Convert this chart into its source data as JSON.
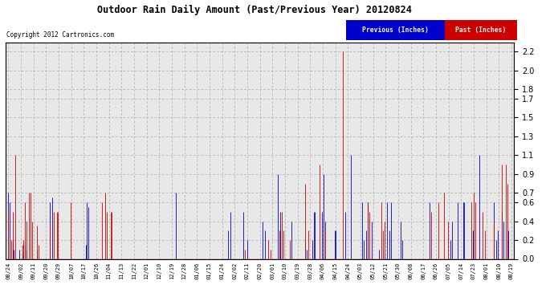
{
  "title": "Outdoor Rain Daily Amount (Past/Previous Year) 20120824",
  "copyright": "Copyright 2012 Cartronics.com",
  "legend": [
    "Previous (Inches)",
    "Past (Inches)"
  ],
  "legend_colors": [
    "#0000cc",
    "#cc0000"
  ],
  "bg_color": "#ffffff",
  "plot_bg_color": "#e8e8e8",
  "grid_color": "#aaaaaa",
  "ylim": [
    0.0,
    2.3
  ],
  "yticks": [
    0.0,
    0.2,
    0.4,
    0.6,
    0.7,
    0.9,
    1.1,
    1.3,
    1.5,
    1.7,
    1.8,
    2.0,
    2.2
  ],
  "x_labels": [
    "08/24",
    "09/02",
    "09/11",
    "09/20",
    "09/29",
    "10/07",
    "10/17",
    "10/26",
    "11/04",
    "11/13",
    "11/22",
    "12/01",
    "12/10",
    "12/19",
    "12/28",
    "01/06",
    "01/15",
    "01/24",
    "02/02",
    "02/11",
    "02/20",
    "03/01",
    "03/10",
    "03/19",
    "03/28",
    "04/06",
    "04/15",
    "04/24",
    "05/03",
    "05/12",
    "05/21",
    "05/30",
    "06/08",
    "06/17",
    "06/26",
    "07/05",
    "07/14",
    "07/23",
    "08/01",
    "08/10",
    "08/19"
  ],
  "previous_rain": [
    0.7,
    0.6,
    0.0,
    0.2,
    0.1,
    0.0,
    0.0,
    0.0,
    0.1,
    0.0,
    0.05,
    0.0,
    0.15,
    0.1,
    0.0,
    0.0,
    0.0,
    0.0,
    0.0,
    0.0,
    0.0,
    0.1,
    0.0,
    0.0,
    0.0,
    0.0,
    0.0,
    0.0,
    0.0,
    0.0,
    0.6,
    0.0,
    0.65,
    0.0,
    0.0,
    0.0,
    0.0,
    0.0,
    0.0,
    0.0,
    0.0,
    0.0,
    0.0,
    0.0,
    0.0,
    0.0,
    0.0,
    0.0,
    0.0,
    0.0,
    0.0,
    0.0,
    0.0,
    0.0,
    0.0,
    0.0,
    0.15,
    0.6,
    0.55,
    0.0,
    0.0,
    0.0,
    0.0,
    0.0,
    0.0,
    0.0,
    0.0,
    0.0,
    0.0,
    0.0,
    0.0,
    0.0,
    0.0,
    0.0,
    0.0,
    0.0,
    0.0,
    0.0,
    0.0,
    0.0,
    0.0,
    0.0,
    0.0,
    0.0,
    0.0,
    0.0,
    0.0,
    0.0,
    0.0,
    0.0,
    0.0,
    0.0,
    0.0,
    0.0,
    0.0,
    0.0,
    0.0,
    0.0,
    0.0,
    0.0,
    0.0,
    0.0,
    0.0,
    0.0,
    0.0,
    0.0,
    0.0,
    0.0,
    0.0,
    0.0,
    0.0,
    0.0,
    0.0,
    0.0,
    0.0,
    0.0,
    0.0,
    0.0,
    0.0,
    0.0,
    0.0,
    0.7,
    0.0,
    0.0,
    0.0,
    0.0,
    0.0,
    0.0,
    0.0,
    0.0,
    0.0,
    0.0,
    0.0,
    0.0,
    0.0,
    0.0,
    0.0,
    0.0,
    0.0,
    0.0,
    0.0,
    0.0,
    0.0,
    0.0,
    0.0,
    0.0,
    0.0,
    0.0,
    0.0,
    0.0,
    0.0,
    0.0,
    0.0,
    0.0,
    0.0,
    0.0,
    0.0,
    0.0,
    0.0,
    0.3,
    0.0,
    0.5,
    0.0,
    0.0,
    0.0,
    0.0,
    0.0,
    0.0,
    0.0,
    0.0,
    0.5,
    0.0,
    0.0,
    0.2,
    0.0,
    0.0,
    0.0,
    0.0,
    0.0,
    0.0,
    0.0,
    0.0,
    0.0,
    0.0,
    0.4,
    0.0,
    0.3,
    0.0,
    0.0,
    0.0,
    0.0,
    0.0,
    0.0,
    0.0,
    0.0,
    0.9,
    0.0,
    0.5,
    0.0,
    0.0,
    0.0,
    0.0,
    0.0,
    0.0,
    0.0,
    0.4,
    0.0,
    0.0,
    0.0,
    0.0,
    0.0,
    0.0,
    0.0,
    0.0,
    0.0,
    0.2,
    0.1,
    0.0,
    0.0,
    0.0,
    0.2,
    0.5,
    0.5,
    0.0,
    0.0,
    0.0,
    0.0,
    0.5,
    0.9,
    0.4,
    0.0,
    0.0,
    0.0,
    0.0,
    0.0,
    0.0,
    0.3,
    0.3,
    0.0,
    0.0,
    0.0,
    0.0,
    0.0,
    0.0,
    0.5,
    0.0,
    0.0,
    0.0,
    1.1,
    0.0,
    0.0,
    0.0,
    0.0,
    0.0,
    0.0,
    0.0,
    0.6,
    0.2,
    0.0,
    0.3,
    0.6,
    0.0,
    0.0,
    0.4,
    0.0,
    0.0,
    0.0,
    0.0,
    0.1,
    0.0,
    0.0,
    0.0,
    0.0,
    0.0,
    0.6,
    0.0,
    0.3,
    0.6,
    0.0,
    0.0,
    0.0,
    0.0,
    0.0,
    0.0,
    0.4,
    0.2,
    0.0,
    0.0,
    0.0,
    0.0,
    0.0,
    0.0,
    0.0,
    0.0,
    0.0,
    0.0,
    0.0,
    0.0,
    0.0,
    0.0,
    0.0,
    0.0,
    0.0,
    0.0,
    0.0,
    0.6,
    0.0,
    0.0,
    0.0,
    0.0,
    0.0,
    0.0,
    0.0,
    0.0,
    0.0,
    0.0,
    0.0,
    0.0,
    0.0,
    0.0,
    0.2,
    0.4,
    0.0,
    0.0,
    0.0,
    0.6,
    0.0,
    0.0,
    0.0,
    0.6,
    0.6,
    0.0,
    0.0,
    0.0,
    0.0,
    0.0,
    0.3,
    0.0,
    0.0,
    0.0,
    0.0,
    1.1,
    0.0,
    0.0,
    0.0,
    0.0,
    0.0,
    0.0,
    0.0,
    0.0,
    0.0,
    0.6,
    0.0,
    0.2,
    0.3,
    0.0,
    0.0,
    0.5,
    0.4,
    0.0,
    0.0,
    0.2,
    0.3,
    0.0,
    0.0
  ],
  "past_rain": [
    0.5,
    0.2,
    0.2,
    0.5,
    0.0,
    1.1,
    0.0,
    0.0,
    0.0,
    0.0,
    0.15,
    0.2,
    0.6,
    0.4,
    0.0,
    0.7,
    0.7,
    0.4,
    0.0,
    0.0,
    0.0,
    0.35,
    0.15,
    0.0,
    0.0,
    0.0,
    0.0,
    0.0,
    0.0,
    0.0,
    0.4,
    0.0,
    0.0,
    0.5,
    0.0,
    0.5,
    0.5,
    0.0,
    0.0,
    0.0,
    0.0,
    0.0,
    0.0,
    0.0,
    0.0,
    0.6,
    0.0,
    0.0,
    0.0,
    0.0,
    0.0,
    0.0,
    0.0,
    0.0,
    0.0,
    0.0,
    0.0,
    0.0,
    0.0,
    0.0,
    0.0,
    0.0,
    0.0,
    0.0,
    0.0,
    0.0,
    0.0,
    0.0,
    0.6,
    0.0,
    0.7,
    0.5,
    0.0,
    0.0,
    0.5,
    0.5,
    0.0,
    0.0,
    0.0,
    0.0,
    0.0,
    0.0,
    0.0,
    0.0,
    0.0,
    0.0,
    0.0,
    0.0,
    0.0,
    0.0,
    0.0,
    0.0,
    0.0,
    0.0,
    0.0,
    0.0,
    0.0,
    0.0,
    0.0,
    0.0,
    0.0,
    0.0,
    0.0,
    0.0,
    0.0,
    0.0,
    0.0,
    0.0,
    0.0,
    0.0,
    0.0,
    0.0,
    0.0,
    0.0,
    0.0,
    0.0,
    0.0,
    0.0,
    0.0,
    0.0,
    0.0,
    0.0,
    0.0,
    0.0,
    0.0,
    0.0,
    0.0,
    0.0,
    0.0,
    0.0,
    0.0,
    0.0,
    0.0,
    0.0,
    0.0,
    0.0,
    0.0,
    0.0,
    0.0,
    0.0,
    0.0,
    0.0,
    0.0,
    0.0,
    0.0,
    0.0,
    0.0,
    0.0,
    0.0,
    0.0,
    0.0,
    0.0,
    0.0,
    0.0,
    0.0,
    0.0,
    0.0,
    0.0,
    0.0,
    0.0,
    0.0,
    0.0,
    0.0,
    0.0,
    0.0,
    0.0,
    0.0,
    0.0,
    0.0,
    0.0,
    0.0,
    0.1,
    0.0,
    0.0,
    0.0,
    0.0,
    0.0,
    0.0,
    0.0,
    0.0,
    0.0,
    0.0,
    0.0,
    0.0,
    0.0,
    0.0,
    0.0,
    0.0,
    0.2,
    0.0,
    0.1,
    0.0,
    0.0,
    0.0,
    0.0,
    0.0,
    0.3,
    0.0,
    0.5,
    0.3,
    0.0,
    0.0,
    0.0,
    0.0,
    0.2,
    0.0,
    0.0,
    0.0,
    0.0,
    0.0,
    0.0,
    0.0,
    0.0,
    0.0,
    0.0,
    0.8,
    0.0,
    0.3,
    0.0,
    0.0,
    0.0,
    0.0,
    0.0,
    0.0,
    0.0,
    1.0,
    0.0,
    0.0,
    0.0,
    0.3,
    0.0,
    0.0,
    0.0,
    0.0,
    0.0,
    0.0,
    0.0,
    0.0,
    0.0,
    0.0,
    0.0,
    0.0,
    2.2,
    0.0,
    0.0,
    0.0,
    0.0,
    0.0,
    0.0,
    0.0,
    0.0,
    0.0,
    0.0,
    0.0,
    0.0,
    0.0,
    0.0,
    0.0,
    0.0,
    0.0,
    0.6,
    0.5,
    0.0,
    0.0,
    0.0,
    0.0,
    0.0,
    0.0,
    0.0,
    0.0,
    0.6,
    0.3,
    0.4,
    0.0,
    0.0,
    0.0,
    0.0,
    0.0,
    0.0,
    0.0,
    0.0,
    0.0,
    0.0,
    0.0,
    0.0,
    0.0,
    0.0,
    0.0,
    0.0,
    0.0,
    0.0,
    0.0,
    0.0,
    0.0,
    0.0,
    0.0,
    0.0,
    0.0,
    0.0,
    0.0,
    0.0,
    0.0,
    0.0,
    0.0,
    0.0,
    0.0,
    0.5,
    0.0,
    0.0,
    0.0,
    0.0,
    0.6,
    0.0,
    0.0,
    0.0,
    0.7,
    0.0,
    0.0,
    0.4,
    0.0,
    0.0,
    0.0,
    0.0,
    0.0,
    0.0,
    0.0,
    0.0,
    0.0,
    0.0,
    0.0,
    0.0,
    0.0,
    0.0,
    0.0,
    0.0,
    0.6,
    0.0,
    0.7,
    0.6,
    0.0,
    0.0,
    0.0,
    0.0,
    0.5,
    0.0,
    0.3,
    0.0,
    0.0,
    0.0,
    0.0,
    0.0,
    0.4,
    0.0,
    0.0,
    0.0,
    0.0,
    0.0,
    1.0,
    0.0,
    0.0,
    1.0,
    0.8,
    0.0,
    0.0,
    0.0
  ]
}
